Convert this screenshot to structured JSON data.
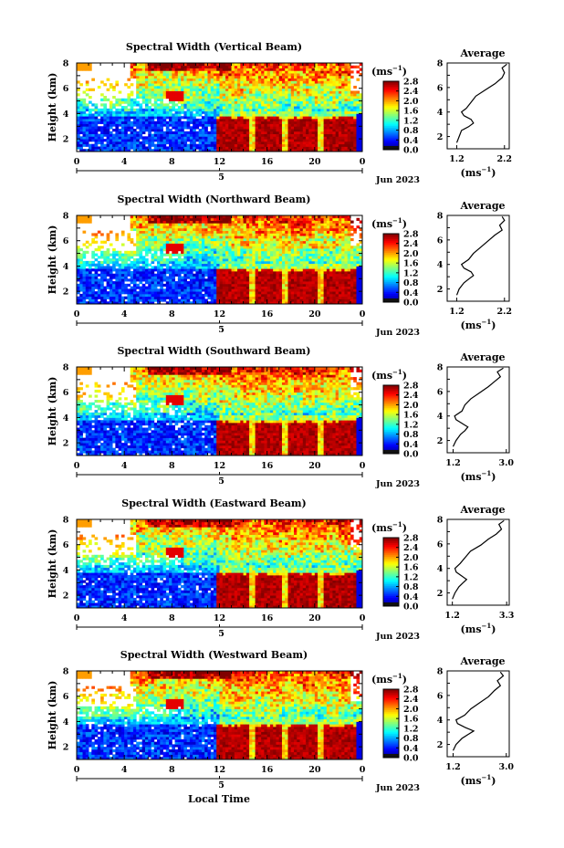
{
  "figure": {
    "xlabel": "Local Time",
    "month_label": "Jun 2023",
    "colorbar_unit": "(ms",
    "colorbar_exp": "−1",
    "avg_title": "Average"
  },
  "chart_data": [
    {
      "type": "heatmap",
      "title": "Spectral Width (Vertical Beam)",
      "ylabel": "Height (km)",
      "x_ticks": [
        "0",
        "4",
        "8",
        "12",
        "16",
        "20",
        "0"
      ],
      "y_ticks": [
        "2",
        "4",
        "6",
        "8"
      ],
      "date_tick": "5",
      "xlim": [
        0,
        24
      ],
      "ylim": [
        1,
        8
      ],
      "colorbar_ticks": [
        "2.8",
        "2.4",
        "2.0",
        "1.6",
        "1.2",
        "0.8",
        "0.4",
        "0.0"
      ],
      "colorbar_range": [
        0,
        2.8
      ],
      "avg_profile": {
        "type": "line",
        "xlabel": "(ms⁻¹)",
        "x_ticks": [
          "1.2",
          "2.2"
        ],
        "y_ticks": [
          "2",
          "4",
          "6",
          "8"
        ],
        "xlim": [
          1.0,
          2.3
        ],
        "x": [
          1.2,
          1.25,
          1.3,
          1.45,
          1.55,
          1.5,
          1.35,
          1.3,
          1.4,
          1.5,
          1.6,
          1.8,
          2.0,
          2.15,
          2.2,
          2.15,
          2.25
        ],
        "y": [
          1.5,
          2.0,
          2.5,
          2.8,
          3.1,
          3.4,
          3.7,
          4.0,
          4.3,
          4.8,
          5.3,
          5.8,
          6.3,
          6.8,
          7.2,
          7.6,
          7.9
        ]
      }
    },
    {
      "type": "heatmap",
      "title": "Spectral Width (Northward Beam)",
      "ylabel": "Height (km)",
      "x_ticks": [
        "0",
        "4",
        "8",
        "12",
        "16",
        "20",
        "0"
      ],
      "y_ticks": [
        "2",
        "4",
        "6",
        "8"
      ],
      "date_tick": "5",
      "xlim": [
        0,
        24
      ],
      "ylim": [
        1,
        8
      ],
      "colorbar_ticks": [
        "2.8",
        "2.4",
        "2.0",
        "1.6",
        "1.2",
        "0.8",
        "0.4",
        "0.0"
      ],
      "colorbar_range": [
        0,
        2.8
      ],
      "avg_profile": {
        "type": "line",
        "xlabel": "(ms⁻¹)",
        "x_ticks": [
          "1.2",
          "2.2"
        ],
        "y_ticks": [
          "2",
          "4",
          "6",
          "8"
        ],
        "xlim": [
          1.0,
          2.3
        ],
        "x": [
          1.2,
          1.25,
          1.35,
          1.45,
          1.55,
          1.5,
          1.35,
          1.3,
          1.45,
          1.55,
          1.7,
          1.85,
          2.0,
          2.15,
          2.1,
          2.2,
          2.15
        ],
        "y": [
          1.5,
          2.0,
          2.5,
          2.8,
          3.1,
          3.4,
          3.7,
          4.0,
          4.4,
          4.9,
          5.4,
          5.9,
          6.4,
          6.8,
          7.2,
          7.6,
          7.9
        ]
      }
    },
    {
      "type": "heatmap",
      "title": "Spectral Width (Southward Beam)",
      "ylabel": "Height (km)",
      "x_ticks": [
        "0",
        "4",
        "8",
        "12",
        "16",
        "20",
        "0"
      ],
      "y_ticks": [
        "2",
        "4",
        "6",
        "8"
      ],
      "date_tick": "5",
      "xlim": [
        0,
        24
      ],
      "ylim": [
        1,
        8
      ],
      "colorbar_ticks": [
        "2.8",
        "2.4",
        "2.0",
        "1.6",
        "1.2",
        "0.8",
        "0.4",
        "0.0"
      ],
      "colorbar_range": [
        0,
        2.8
      ],
      "avg_profile": {
        "type": "line",
        "xlabel": "(ms⁻¹)",
        "x_ticks": [
          "1.2",
          "3.0"
        ],
        "y_ticks": [
          "2",
          "4",
          "6",
          "8"
        ],
        "xlim": [
          1.0,
          3.1
        ],
        "x": [
          1.2,
          1.3,
          1.45,
          1.6,
          1.7,
          1.5,
          1.3,
          1.25,
          1.5,
          1.6,
          1.8,
          2.1,
          2.4,
          2.6,
          2.8,
          2.7,
          2.9
        ],
        "y": [
          1.5,
          2.0,
          2.5,
          2.8,
          3.1,
          3.4,
          3.7,
          4.0,
          4.4,
          4.9,
          5.4,
          5.9,
          6.4,
          6.8,
          7.2,
          7.6,
          7.9
        ]
      }
    },
    {
      "type": "heatmap",
      "title": "Spectral Width (Eastward Beam)",
      "ylabel": "Height (km)",
      "x_ticks": [
        "0",
        "4",
        "8",
        "12",
        "16",
        "20",
        "0"
      ],
      "y_ticks": [
        "2",
        "4",
        "6",
        "8"
      ],
      "date_tick": "5",
      "xlim": [
        0,
        24
      ],
      "ylim": [
        1,
        8
      ],
      "colorbar_ticks": [
        "2.8",
        "2.4",
        "2.0",
        "1.6",
        "1.2",
        "0.8",
        "0.4",
        "0.0"
      ],
      "colorbar_range": [
        0,
        2.8
      ],
      "avg_profile": {
        "type": "line",
        "xlabel": "(ms⁻¹)",
        "x_ticks": [
          "1.2",
          "3.3"
        ],
        "y_ticks": [
          "2",
          "4",
          "6",
          "8"
        ],
        "xlim": [
          1.0,
          3.4
        ],
        "x": [
          1.2,
          1.3,
          1.45,
          1.6,
          1.75,
          1.55,
          1.35,
          1.3,
          1.5,
          1.7,
          1.9,
          2.3,
          2.6,
          2.9,
          3.1,
          3.0,
          3.2
        ],
        "y": [
          1.5,
          2.0,
          2.5,
          2.8,
          3.1,
          3.4,
          3.7,
          4.0,
          4.4,
          4.9,
          5.4,
          5.9,
          6.4,
          6.8,
          7.2,
          7.6,
          7.9
        ]
      }
    },
    {
      "type": "heatmap",
      "title": "Spectral Width (Westward Beam)",
      "ylabel": "Height (km)",
      "x_ticks": [
        "0",
        "4",
        "8",
        "12",
        "16",
        "20",
        "0"
      ],
      "y_ticks": [
        "2",
        "4",
        "6",
        "8"
      ],
      "date_tick": "5",
      "xlim": [
        0,
        24
      ],
      "ylim": [
        1,
        8
      ],
      "colorbar_ticks": [
        "2.8",
        "2.4",
        "2.0",
        "1.6",
        "1.2",
        "0.8",
        "0.4",
        "0.0"
      ],
      "colorbar_range": [
        0,
        2.8
      ],
      "avg_profile": {
        "type": "line",
        "xlabel": "(ms⁻¹)",
        "x_ticks": [
          "1.2",
          "3.0"
        ],
        "y_ticks": [
          "2",
          "4",
          "6",
          "8"
        ],
        "xlim": [
          1.0,
          3.1
        ],
        "x": [
          1.2,
          1.3,
          1.5,
          1.7,
          1.9,
          1.6,
          1.35,
          1.3,
          1.6,
          1.8,
          2.1,
          2.4,
          2.6,
          2.8,
          2.7,
          2.9,
          2.8
        ],
        "y": [
          1.5,
          2.0,
          2.5,
          2.8,
          3.1,
          3.4,
          3.7,
          4.0,
          4.4,
          4.9,
          5.4,
          5.9,
          6.4,
          6.8,
          7.2,
          7.6,
          7.9
        ]
      }
    }
  ]
}
